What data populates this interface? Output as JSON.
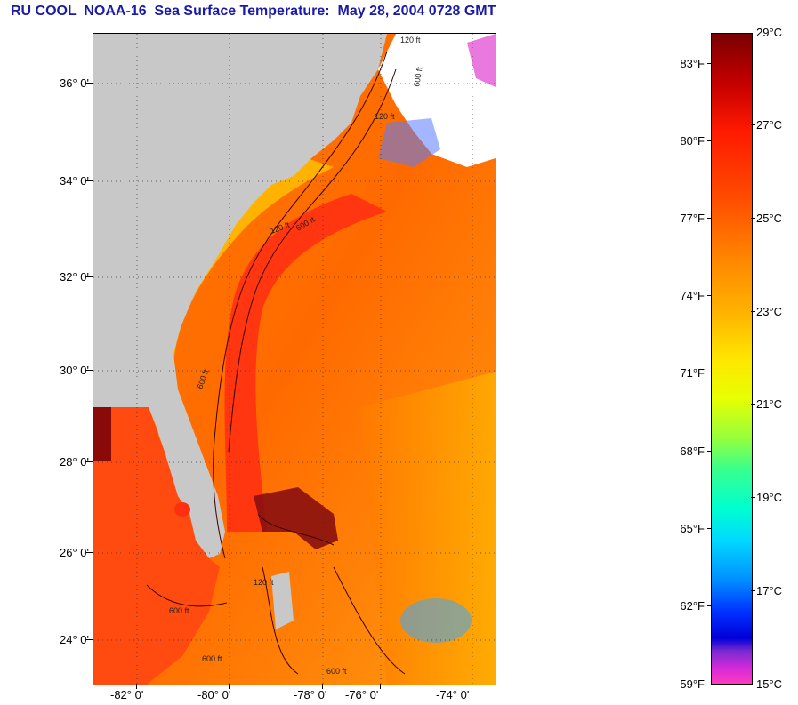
{
  "title": "RU COOL  NOAA-16  Sea Surface Temperature:  May 28, 2004 0728 GMT",
  "map": {
    "lat_labels": [
      "36° 0'",
      "34° 0'",
      "32° 0'",
      "30° 0'",
      "28° 0'",
      "26° 0'",
      "24° 0'"
    ],
    "lon_labels": [
      "-82° 0'",
      "-80° 0'",
      "-78° 0'",
      "-76° 0'",
      "-74° 0'"
    ],
    "contour_labels": [
      "120 ft",
      "600 ft",
      "120 ft",
      "600 ft",
      "120 ft",
      "600 ft",
      "600 ft",
      "600 ft",
      "600 ft",
      "120 ft"
    ],
    "colors": {
      "land": "#c8c8c8",
      "ocean_warm": "#ff5a00",
      "gulf_stream": "#ff2a10",
      "cloud": "#ffffff"
    }
  },
  "colorbar": {
    "fahrenheit_labels": [
      "83°F",
      "80°F",
      "77°F",
      "74°F",
      "71°F",
      "68°F",
      "65°F",
      "62°F",
      "59°F"
    ],
    "celsius_labels": [
      "29°C",
      "27°C",
      "25°C",
      "23°C",
      "21°C",
      "19°C",
      "17°C",
      "15°C"
    ]
  }
}
